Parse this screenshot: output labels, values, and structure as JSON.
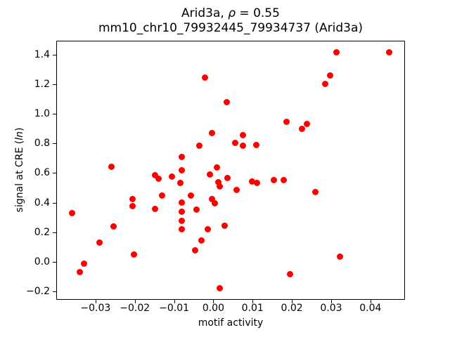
{
  "title": {
    "prefix": "Arid3a, ",
    "rho": "ρ",
    "suffix": " = 0.55"
  },
  "subtitle": "mm10_chr10_79932445_79934737 (Arid3a)",
  "ylabel_parts": {
    "prefix": "signal at CRE (",
    "italic": "ln",
    "suffix": ")"
  },
  "chart_data": {
    "type": "scatter",
    "title": "Arid3a, ρ = 0.55",
    "subtitle": "mm10_chr10_79932445_79934737 (Arid3a)",
    "xlabel": "motif activity",
    "ylabel": "signal at CRE (ln)",
    "marker_color": "#ff0000",
    "axis_color": "#000000",
    "background_color": "#ffffff",
    "grid": false,
    "legend": null,
    "xlim": [
      -0.04,
      0.0488
    ],
    "ylim": [
      -0.2555,
      1.4925
    ],
    "xticks": [
      {
        "value": -0.03,
        "label": "−0.03"
      },
      {
        "value": -0.02,
        "label": "−0.02"
      },
      {
        "value": -0.01,
        "label": "−0.01"
      },
      {
        "value": 0.0,
        "label": "0.00"
      },
      {
        "value": 0.01,
        "label": "0.01"
      },
      {
        "value": 0.02,
        "label": "0.02"
      },
      {
        "value": 0.03,
        "label": "0.03"
      },
      {
        "value": 0.04,
        "label": "0.04"
      }
    ],
    "yticks": [
      {
        "value": -0.2,
        "label": "−0.2"
      },
      {
        "value": 0.0,
        "label": "0.0"
      },
      {
        "value": 0.2,
        "label": "0.2"
      },
      {
        "value": 0.4,
        "label": "0.4"
      },
      {
        "value": 0.6,
        "label": "0.6"
      },
      {
        "value": 0.8,
        "label": "0.8"
      },
      {
        "value": 1.0,
        "label": "1.0"
      },
      {
        "value": 1.2,
        "label": "1.2"
      },
      {
        "value": 1.4,
        "label": "1.4"
      }
    ],
    "points": [
      [
        -0.036,
        0.33
      ],
      [
        -0.034,
        -0.07
      ],
      [
        -0.033,
        -0.012
      ],
      [
        -0.029,
        0.13
      ],
      [
        -0.026,
        0.64
      ],
      [
        -0.0254,
        0.24
      ],
      [
        -0.0205,
        0.425
      ],
      [
        -0.0205,
        0.375
      ],
      [
        -0.0202,
        0.05
      ],
      [
        -0.0148,
        0.585
      ],
      [
        -0.0139,
        0.563
      ],
      [
        -0.0148,
        0.358
      ],
      [
        -0.013,
        0.446
      ],
      [
        -0.0105,
        0.576
      ],
      [
        -0.0081,
        0.71
      ],
      [
        -0.0081,
        0.618
      ],
      [
        -0.0084,
        0.531
      ],
      [
        -0.008,
        0.4
      ],
      [
        -0.008,
        0.338
      ],
      [
        -0.008,
        0.277
      ],
      [
        -0.0081,
        0.219
      ],
      [
        -0.0057,
        0.449
      ],
      [
        -0.0046,
        0.08
      ],
      [
        -0.0042,
        0.352
      ],
      [
        -0.0036,
        0.783
      ],
      [
        -0.0031,
        0.147
      ],
      [
        -0.0021,
        1.242
      ],
      [
        -0.0014,
        0.222
      ],
      [
        -0.0009,
        0.592
      ],
      [
        -0.0004,
        0.87
      ],
      [
        -0.0003,
        0.424
      ],
      [
        0.0003,
        0.398
      ],
      [
        0.0009,
        0.637
      ],
      [
        0.0013,
        0.538
      ],
      [
        0.0017,
        0.509
      ],
      [
        0.0016,
        -0.176
      ],
      [
        0.0029,
        0.246
      ],
      [
        0.0034,
        1.079
      ],
      [
        0.0036,
        0.568
      ],
      [
        0.0056,
        0.801
      ],
      [
        0.006,
        0.485
      ],
      [
        0.0075,
        0.856
      ],
      [
        0.0076,
        0.783
      ],
      [
        0.0099,
        0.545
      ],
      [
        0.0111,
        0.535
      ],
      [
        0.011,
        0.791
      ],
      [
        0.0154,
        0.554
      ],
      [
        0.018,
        0.554
      ],
      [
        0.0187,
        0.947
      ],
      [
        0.0196,
        -0.082
      ],
      [
        0.0226,
        0.899
      ],
      [
        0.0238,
        0.933
      ],
      [
        0.0259,
        0.472
      ],
      [
        0.0285,
        1.201
      ],
      [
        0.0297,
        1.258
      ],
      [
        0.0314,
        1.412
      ],
      [
        0.0448,
        1.412
      ],
      [
        0.0322,
        0.035
      ]
    ]
  }
}
